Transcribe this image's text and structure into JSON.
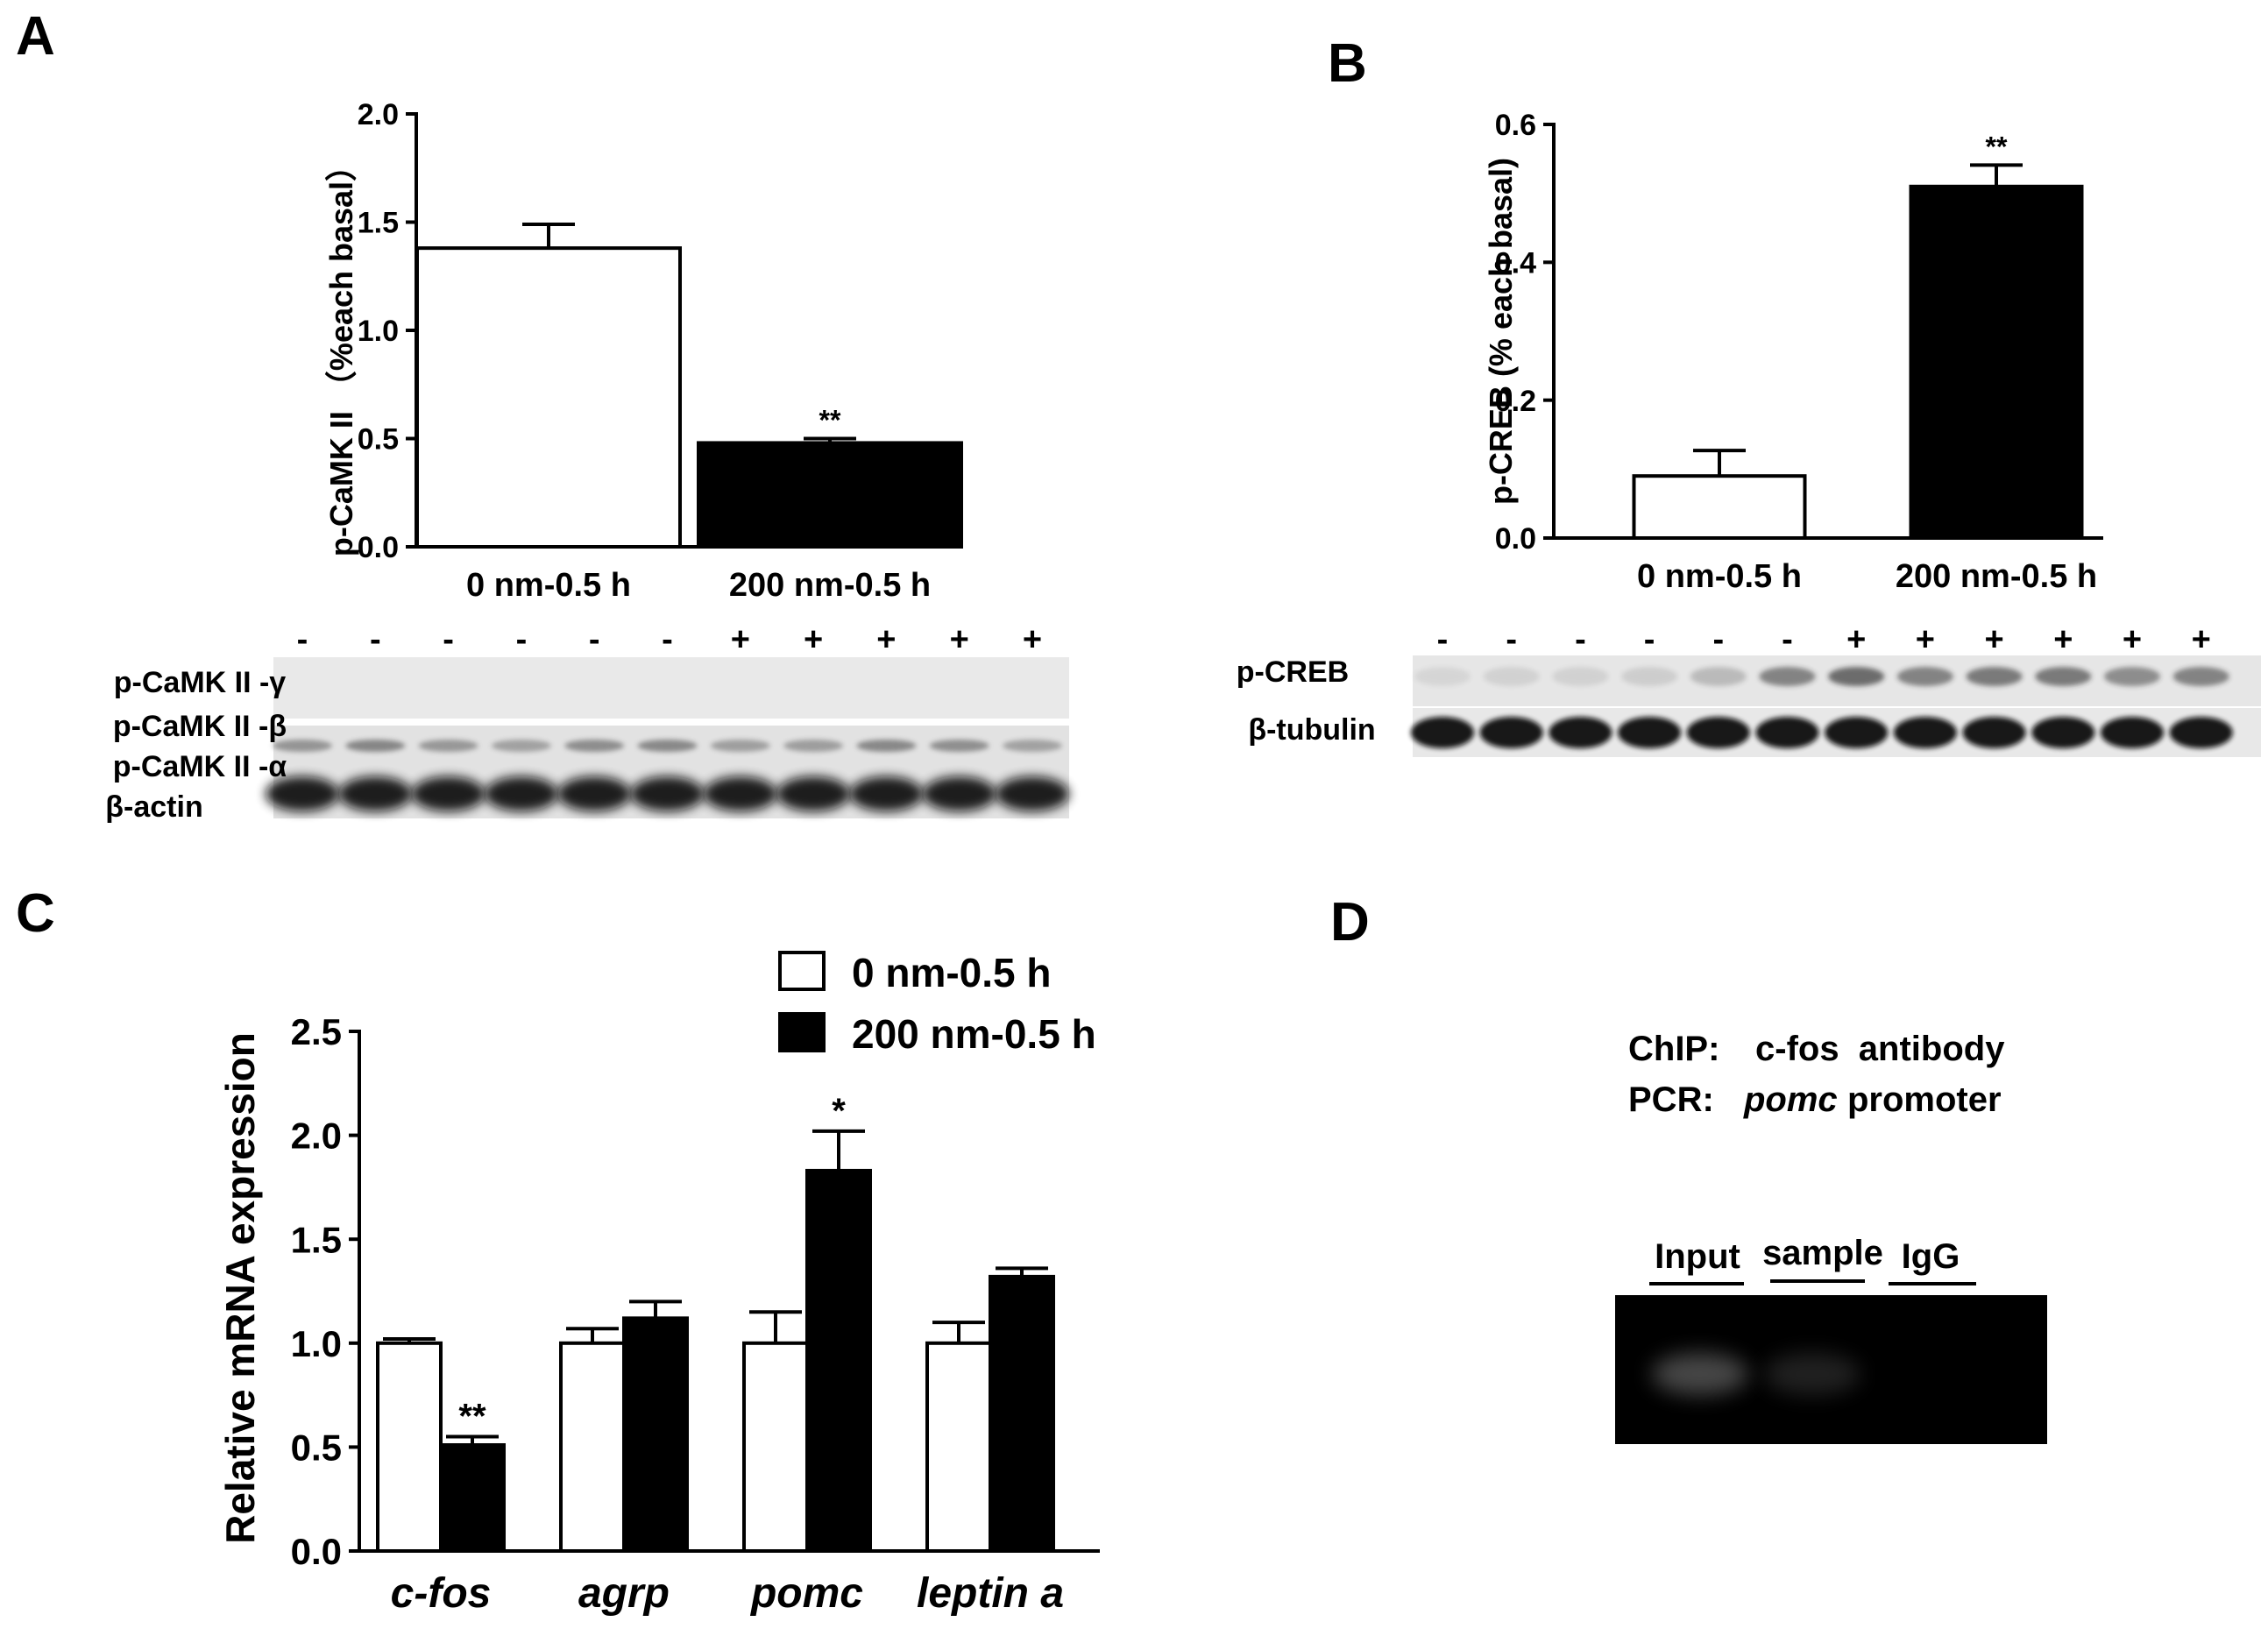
{
  "panels": [
    {
      "label": "A"
    },
    {
      "label": "B"
    },
    {
      "label": "C"
    },
    {
      "label": "D"
    }
  ],
  "chart_data": [
    {
      "panel": "A",
      "type": "bar",
      "categories": [
        "0 nm-0.5 h",
        "200 nm-0.5 h"
      ],
      "values": [
        1.38,
        0.48
      ],
      "errors": [
        0.11,
        0.02
      ],
      "significance": [
        "",
        "**"
      ],
      "ylabel": "p-CaMK II （%each basal）",
      "ylim": [
        0,
        2.0
      ],
      "yticks": [
        "0.0",
        "0.5",
        "1.0",
        "1.5",
        "2.0"
      ],
      "bar_colors": [
        "#ffffff",
        "#000000"
      ],
      "grid": false
    },
    {
      "panel": "B",
      "type": "bar",
      "categories": [
        "0 nm-0.5 h",
        "200 nm-0.5 h"
      ],
      "values": [
        0.09,
        0.51
      ],
      "errors": [
        0.037,
        0.031
      ],
      "significance": [
        "",
        "**"
      ],
      "ylabel": "p-CREB (% each basal)",
      "ylim": [
        0,
        0.6
      ],
      "yticks": [
        "0.0",
        "0.2",
        "0.4",
        "0.6"
      ],
      "bar_colors": [
        "#ffffff",
        "#000000"
      ],
      "grid": false
    },
    {
      "panel": "C",
      "type": "bar",
      "categories": [
        "c-fos",
        "agrp",
        "pomc",
        "leptin a"
      ],
      "series": [
        {
          "name": "0 nm-0.5 h",
          "values": [
            1.0,
            1.0,
            1.0,
            1.0
          ],
          "errors": [
            0.02,
            0.07,
            0.15,
            0.1
          ],
          "significance": [
            "",
            "",
            "",
            ""
          ],
          "color": "#ffffff"
        },
        {
          "name": "200 nm-0.5 h",
          "values": [
            0.51,
            1.12,
            1.83,
            1.32
          ],
          "errors": [
            0.04,
            0.08,
            0.19,
            0.04
          ],
          "significance": [
            "**",
            "",
            "*",
            ""
          ],
          "color": "#000000"
        }
      ],
      "ylabel": "Relative mRNA expression",
      "ylim": [
        0,
        2.5
      ],
      "yticks": [
        "0.0",
        "0.5",
        "1.0",
        "1.5",
        "2.0",
        "2.5"
      ],
      "legend_position": "top-right",
      "grid": false
    }
  ],
  "blot_a": {
    "treatment_signs": [
      "-",
      "-",
      "-",
      "-",
      "-",
      "-",
      "+",
      "+",
      "+",
      "+",
      "+"
    ],
    "row_labels": [
      "p-CaMK II -γ",
      "p-CaMK II -β",
      "p-CaMK II -α",
      "β-actin"
    ]
  },
  "blot_b": {
    "treatment_signs": [
      "-",
      "-",
      "-",
      "-",
      "-",
      "-",
      "+",
      "+",
      "+",
      "+",
      "+",
      "+"
    ],
    "row_labels": [
      "p-CREB",
      "β-tubulin"
    ],
    "pcreb_band_intensity": [
      0.08,
      0.1,
      0.1,
      0.12,
      0.22,
      0.5,
      0.62,
      0.5,
      0.55,
      0.55,
      0.45,
      0.5
    ]
  },
  "gel_d": {
    "chip_key": "ChIP:",
    "chip_value": "c-fos  antibody",
    "pcr_key": "PCR:",
    "pcr_italic": "pomc",
    "pcr_value": "promoter",
    "lanes": [
      "Input",
      "sample",
      "IgG"
    ],
    "lane_band_intensity": [
      0.55,
      0.25,
      0
    ]
  }
}
